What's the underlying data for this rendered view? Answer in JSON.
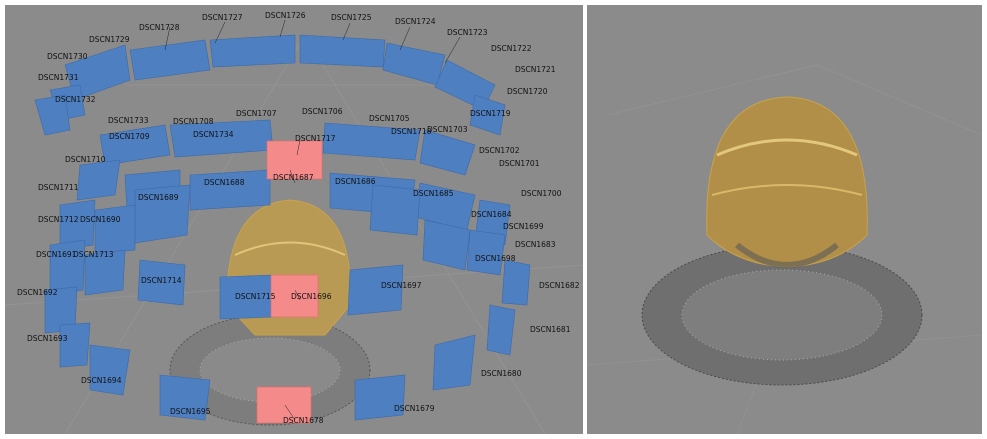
{
  "left_view": {
    "cameras": [
      "DSCN1728",
      "DSCN1727",
      "DSCN1726",
      "DSCN1725",
      "DSCN1724",
      "DSCN1723",
      "DSCN1722",
      "DSCN1721",
      "DSCN1720",
      "DSCN1719",
      "DSCN1729",
      "DSCN1730",
      "DSCN1731",
      "DSCN1732",
      "DSCN1733",
      "DSCN1708",
      "DSCN1707",
      "DSCN1706",
      "DSCN1705",
      "DSCN1718",
      "DSCN1703",
      "DSCN1709",
      "DSCN1734",
      "DSCN1717",
      "DSCN1702",
      "DSCN1701",
      "DSCN1710",
      "DSCN1687",
      "DSCN1688",
      "DSCN1686",
      "DSCN1711",
      "DSCN1689",
      "DSCN1685",
      "DSCN1700",
      "DSCN1684",
      "DSCN1712",
      "DSCN1690",
      "DSCN1699",
      "DSCN1683",
      "DSCN1691",
      "DSCN1713",
      "DSCN1698",
      "DSCN1714",
      "DSCN1697",
      "DSCN1682",
      "DSCN1692",
      "DSCN1715",
      "DSCN1696",
      "DSCN1681",
      "DSCN1693",
      "DSCN1680",
      "DSCN1694",
      "DSCN1695",
      "DSCN1679",
      "DSCN1678"
    ],
    "colors": {
      "camera": "#4e7fc1",
      "selected_camera": "#f48a8a",
      "background": "#8b8b8b"
    }
  },
  "right_view": {
    "colors": {
      "background": "#8b8b8b",
      "point_cloud": "#c9a24a"
    }
  }
}
